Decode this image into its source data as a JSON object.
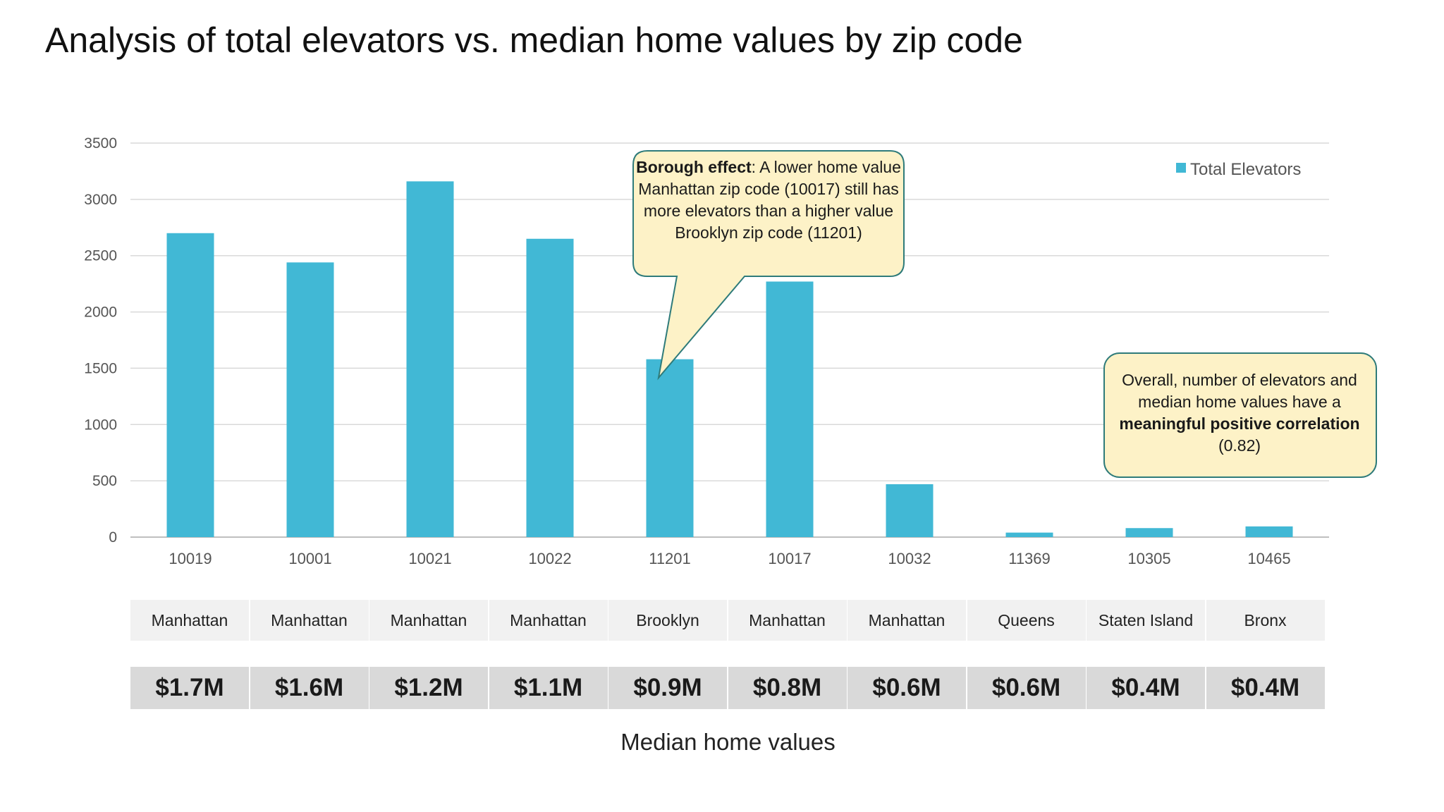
{
  "title": "Analysis of total elevators vs. median home values by zip code",
  "chart_data": {
    "type": "bar",
    "categories": [
      "10019",
      "10001",
      "10021",
      "10022",
      "11201",
      "10017",
      "10032",
      "11369",
      "10305",
      "10465"
    ],
    "series": [
      {
        "name": "Total Elevators",
        "values": [
          2700,
          2440,
          3160,
          2650,
          1580,
          2270,
          470,
          40,
          80,
          95
        ],
        "color": "#41b8d5"
      }
    ],
    "ylim": [
      0,
      3500
    ],
    "yticks": [
      0,
      500,
      1000,
      1500,
      2000,
      2500,
      3000,
      3500
    ],
    "xlabel": "Median home values",
    "grid": true,
    "legend_position": "top-right",
    "boroughs": [
      "Manhattan",
      "Manhattan",
      "Manhattan",
      "Manhattan",
      "Brooklyn",
      "Manhattan",
      "Manhattan",
      "Queens",
      "Staten Island",
      "Bronx"
    ],
    "median_home_values": [
      "$1.7M",
      "$1.6M",
      "$1.2M",
      "$1.1M",
      "$0.9M",
      "$0.8M",
      "$0.6M",
      "$0.6M",
      "$0.4M",
      "$0.4M"
    ],
    "annotations": [
      {
        "bold": "Borough effect",
        "text": ": A lower home value Manhattan zip code (10017) still has more elevators than a higher  value Brooklyn zip code (11201)"
      },
      {
        "before": "Overall, number of elevators and median home values have a ",
        "bold": "meaningful positive correlation",
        "after": " (0.82)"
      }
    ]
  },
  "colors": {
    "bar": "#41b8d5",
    "callout_fill": "#fdf2c7",
    "callout_border": "#2e7b7a",
    "grid": "#d9d9d9"
  }
}
